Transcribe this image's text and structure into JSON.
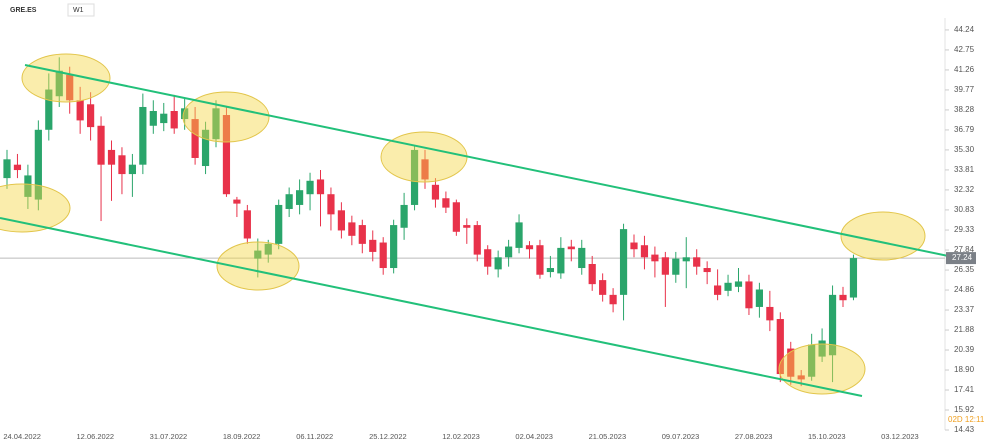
{
  "header": {
    "symbol": "GRE.ES",
    "interval": "W1"
  },
  "footer": {
    "stamp": "02D 12:11"
  },
  "chart_data": {
    "type": "candlestick",
    "up_color": "#2aa56b",
    "down_color": "#e8324a",
    "ylim": [
      14.2,
      45.1
    ],
    "yticks": [
      44.24,
      42.75,
      41.26,
      39.77,
      38.28,
      36.79,
      {
        "value": 35.3,
        "label": "35.30"
      },
      33.81,
      32.32,
      30.83,
      29.33,
      27.84,
      26.35,
      24.86,
      23.37,
      21.88,
      20.39,
      {
        "value": 18.9,
        "label": "18.90"
      },
      17.41,
      15.92,
      14.43
    ],
    "xticks": [
      "24.04.2022",
      "12.06.2022",
      "31.07.2022",
      "18.09.2022",
      "06.11.2022",
      "25.12.2022",
      "12.02.2023",
      "02.04.2023",
      "21.05.2023",
      "09.07.2023",
      "27.08.2023",
      "15.10.2023",
      "03.12.2023"
    ],
    "last_price": {
      "value": 27.24,
      "label": "27.24"
    },
    "grid": false,
    "open": [
      33.2,
      34.2,
      31.8,
      31.6,
      36.8,
      39.3,
      40.9,
      39.0,
      38.7,
      37.1,
      35.3,
      34.9,
      33.5,
      34.2,
      37.1,
      37.3,
      38.2,
      37.6,
      37.6,
      34.1,
      36.1,
      37.9,
      31.6,
      30.8,
      27.2,
      27.5,
      28.3,
      30.9,
      31.2,
      32.0,
      33.1,
      32.0,
      30.8,
      29.9,
      29.7,
      28.6,
      28.4,
      26.5,
      29.5,
      31.2,
      34.6,
      32.7,
      31.7,
      31.4,
      29.7,
      29.7,
      27.9,
      26.4,
      27.3,
      28.0,
      28.2,
      28.2,
      26.2,
      26.1,
      28.1,
      26.5,
      26.8,
      25.6,
      24.5,
      24.5,
      28.4,
      28.2,
      27.5,
      27.3,
      26.0,
      27.0,
      27.3,
      26.5,
      25.2,
      24.8,
      25.1,
      25.5,
      23.6,
      23.6,
      22.7,
      20.5,
      18.5,
      18.4,
      19.9,
      20.0,
      24.5,
      24.3
    ],
    "high": [
      35.3,
      35.0,
      34.2,
      37.5,
      41.0,
      42.2,
      41.5,
      40.0,
      39.6,
      37.8,
      36.0,
      35.5,
      35.0,
      39.5,
      39.0,
      38.8,
      39.4,
      39.2,
      38.5,
      37.4,
      39.0,
      38.5,
      31.8,
      31.2,
      28.7,
      28.6,
      31.6,
      32.5,
      33.1,
      33.6,
      33.8,
      32.5,
      31.4,
      30.4,
      30.1,
      29.3,
      28.8,
      30.1,
      32.1,
      35.6,
      35.3,
      33.2,
      32.2,
      31.6,
      30.2,
      30.0,
      28.2,
      27.8,
      28.6,
      30.5,
      28.5,
      28.6,
      27.4,
      28.8,
      28.6,
      28.6,
      27.4,
      26.1,
      25.0,
      29.8,
      29.0,
      28.9,
      28.1,
      27.7,
      27.7,
      28.8,
      27.9,
      27.0,
      26.4,
      26.0,
      26.5,
      26.0,
      25.4,
      24.8,
      23.2,
      21.0,
      18.9,
      21.6,
      22.0,
      25.2,
      25.1,
      27.5
    ],
    "low": [
      32.4,
      33.2,
      30.9,
      30.8,
      36.0,
      38.5,
      38.0,
      36.5,
      36.0,
      30.0,
      31.5,
      32.0,
      31.8,
      33.5,
      36.5,
      36.7,
      36.5,
      36.8,
      34.2,
      33.5,
      35.5,
      31.8,
      30.3,
      28.3,
      25.8,
      26.9,
      27.9,
      30.3,
      30.5,
      30.8,
      29.6,
      29.3,
      28.7,
      28.2,
      27.6,
      27.0,
      26.0,
      26.1,
      28.6,
      30.8,
      32.4,
      31.0,
      30.6,
      28.9,
      28.3,
      27.0,
      26.0,
      25.8,
      26.6,
      27.6,
      27.2,
      25.7,
      25.8,
      25.7,
      27.0,
      26.0,
      24.8,
      24.0,
      23.2,
      22.6,
      27.3,
      26.4,
      25.8,
      23.6,
      25.4,
      25.0,
      26.0,
      25.3,
      24.1,
      24.4,
      24.7,
      23.0,
      22.8,
      21.8,
      18.0,
      17.8,
      17.7,
      18.1,
      19.5,
      18.0,
      23.6,
      24.1
    ],
    "close": [
      34.6,
      33.8,
      33.4,
      36.8,
      39.8,
      41.2,
      39.0,
      37.5,
      37.0,
      34.2,
      34.2,
      33.5,
      34.2,
      38.5,
      38.2,
      38.0,
      36.9,
      38.4,
      34.7,
      36.8,
      38.4,
      32.0,
      31.3,
      28.7,
      27.8,
      28.3,
      31.2,
      32.0,
      32.3,
      33.0,
      32.0,
      30.5,
      29.3,
      28.9,
      28.3,
      27.7,
      26.5,
      29.7,
      31.2,
      35.3,
      33.1,
      31.6,
      31.0,
      29.2,
      29.5,
      27.5,
      26.6,
      27.3,
      28.1,
      29.9,
      27.9,
      26.0,
      26.5,
      28.0,
      27.9,
      28.0,
      25.3,
      24.5,
      23.8,
      29.4,
      27.9,
      27.3,
      27.0,
      26.0,
      27.2,
      27.3,
      26.6,
      26.2,
      24.5,
      25.4,
      25.5,
      23.5,
      24.9,
      22.6,
      18.6,
      18.4,
      18.2,
      20.8,
      21.1,
      24.5,
      24.1,
      27.24
    ]
  }
}
